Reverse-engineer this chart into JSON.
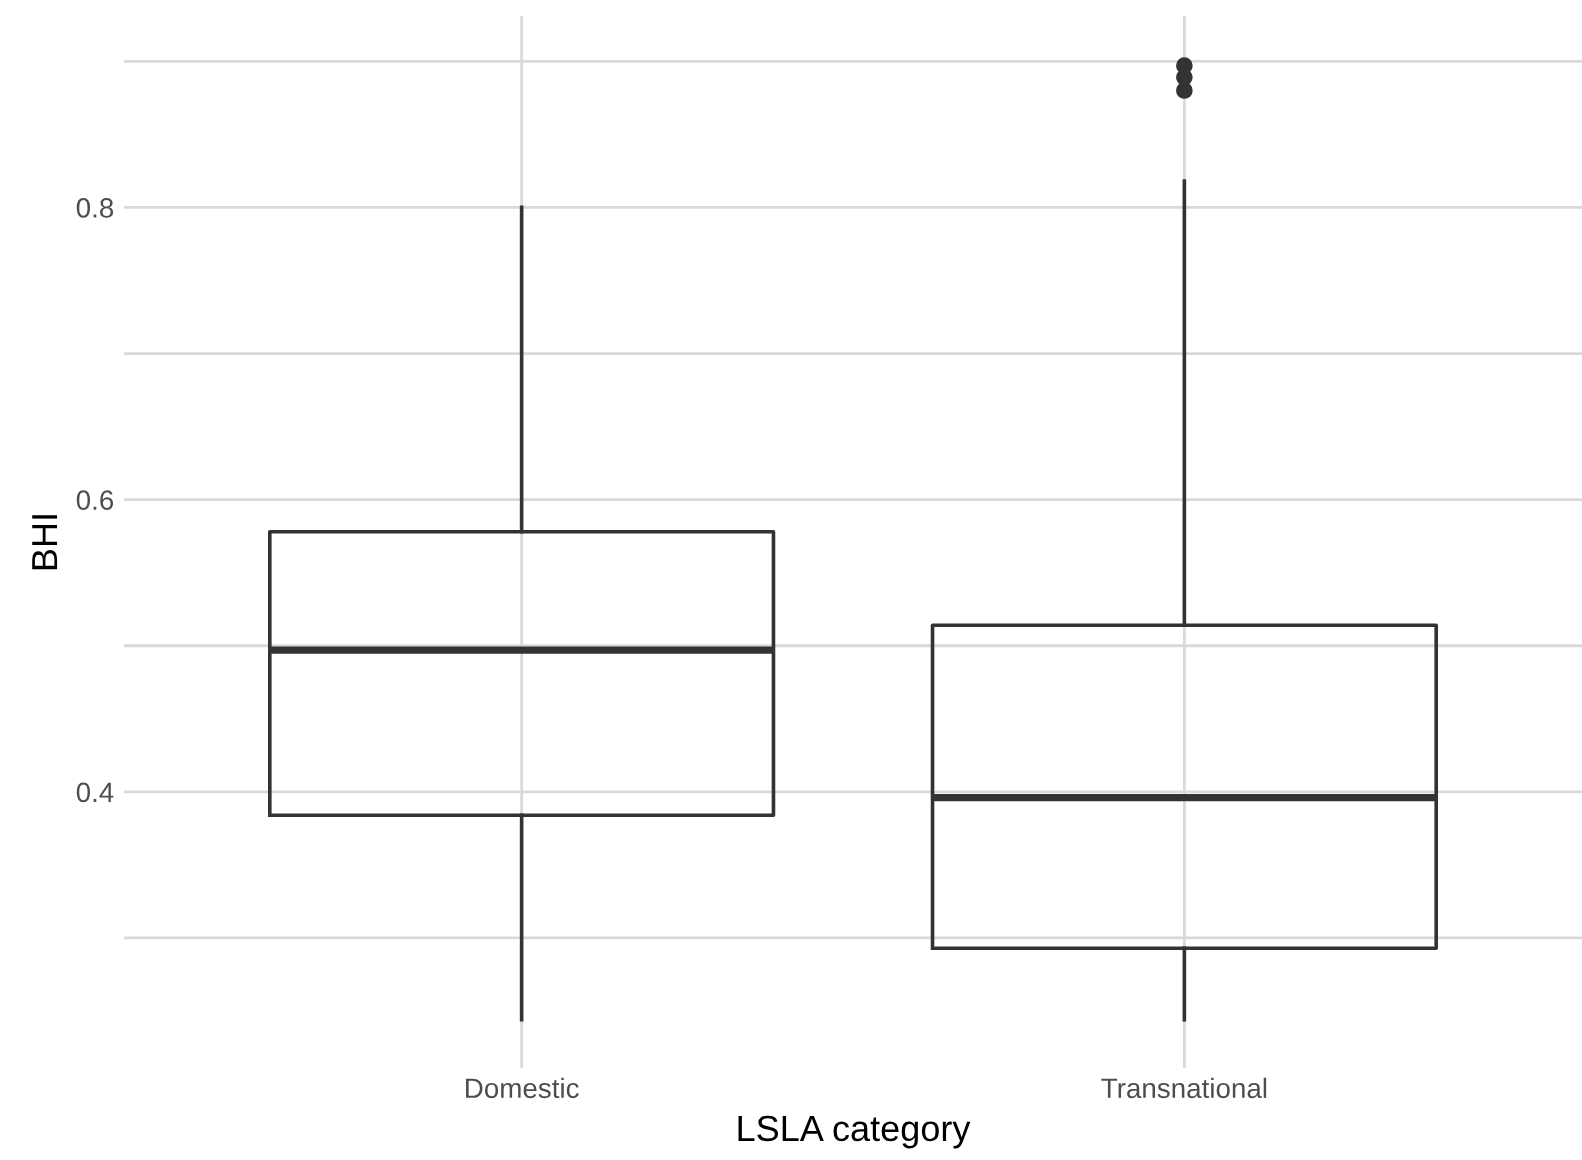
{
  "chart_data": {
    "type": "box",
    "xlabel": "LSLA category",
    "ylabel": "BHI",
    "categories": [
      "Domestic",
      "Transnational"
    ],
    "boxes": [
      {
        "low": 0.244,
        "q1": 0.384,
        "median": 0.497,
        "q3": 0.578,
        "high": 0.8
      },
      {
        "low": 0.244,
        "q1": 0.293,
        "median": 0.396,
        "q3": 0.514,
        "high": 0.818,
        "outliers": [
          0.897,
          0.889,
          0.88
        ]
      }
    ],
    "color": "#333333",
    "ylim": [
      0.211,
      0.931
    ],
    "yticks": [
      {
        "value": 0.3,
        "label": null
      },
      0.4,
      {
        "value": 0.5,
        "label": null
      },
      0.6,
      {
        "value": 0.7,
        "label": null
      },
      0.8,
      {
        "value": 0.9,
        "label": null
      }
    ],
    "grid": true
  }
}
